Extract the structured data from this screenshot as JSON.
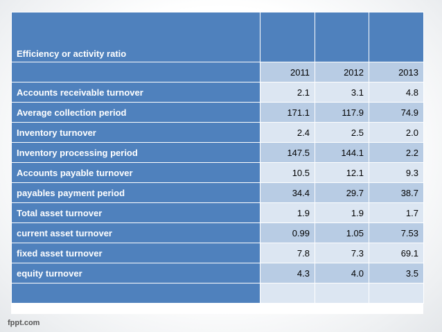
{
  "table": {
    "title": "Efficiency or activity ratio",
    "years": [
      "2011",
      "2012",
      "2013"
    ],
    "rows": [
      {
        "label": "Accounts receivable turnover",
        "values": [
          "2.1",
          "3.1",
          "4.8"
        ]
      },
      {
        "label": "Average collection period",
        "values": [
          "171.1",
          "117.9",
          "74.9"
        ]
      },
      {
        "label": "Inventory turnover",
        "values": [
          "2.4",
          "2.5",
          "2.0"
        ]
      },
      {
        "label": "Inventory processing period",
        "values": [
          "147.5",
          "144.1",
          "2.2"
        ]
      },
      {
        "label": "Accounts payable turnover",
        "values": [
          "10.5",
          "12.1",
          "9.3"
        ]
      },
      {
        "label": "payables payment period",
        "values": [
          "34.4",
          "29.7",
          "38.7"
        ]
      },
      {
        "label": "Total asset turnover",
        "values": [
          "1.9",
          "1.9",
          "1.7"
        ]
      },
      {
        "label": "current asset turnover",
        "values": [
          "0.99",
          "1.05",
          "7.53"
        ]
      },
      {
        "label": "fixed asset turnover",
        "values": [
          "7.8",
          "7.3",
          "69.1"
        ]
      },
      {
        "label": "equity turnover",
        "values": [
          "4.3",
          "4.0",
          "3.5"
        ]
      }
    ]
  },
  "footer": {
    "logo_text": "fppt.com"
  }
}
